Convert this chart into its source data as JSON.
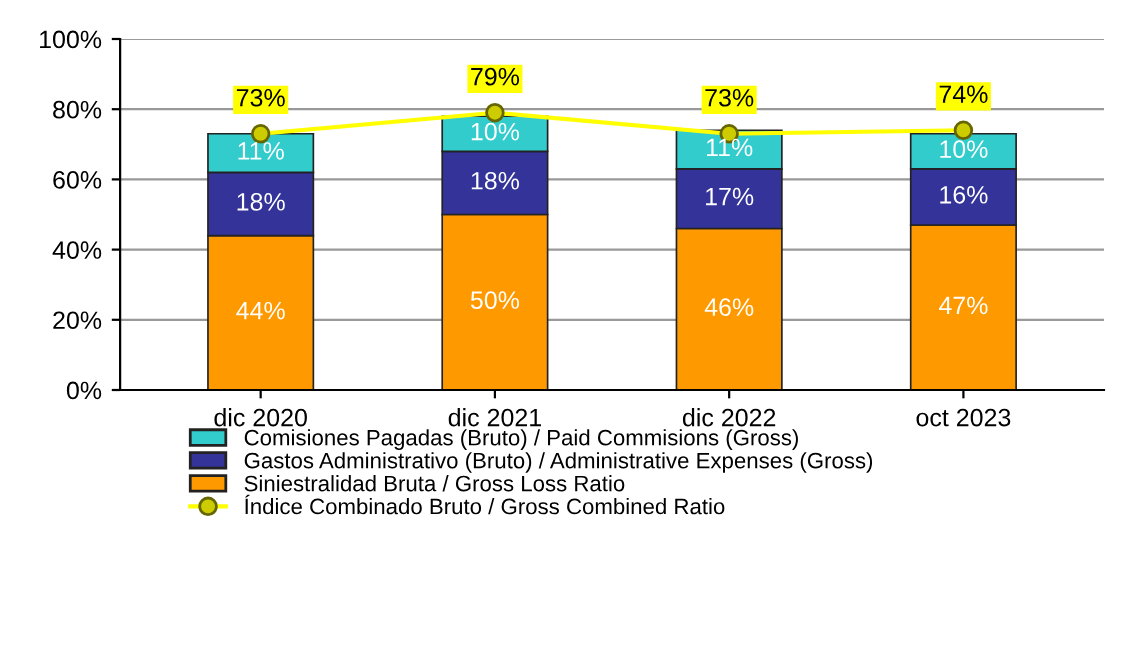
{
  "chart_data": {
    "type": "bar",
    "stacked": true,
    "categories": [
      "dic 2020",
      "dic 2021",
      "dic 2022",
      "oct 2023"
    ],
    "series": [
      {
        "name": "Siniestralidad Bruta / Gross Loss Ratio",
        "color": "#ff9900",
        "values": [
          44,
          50,
          46,
          47
        ],
        "value_labels": [
          "44%",
          "50%",
          "46%",
          "47%"
        ]
      },
      {
        "name": "Gastos Administrativo (Bruto) / Administrative Expenses (Gross)",
        "color": "#333399",
        "values": [
          18,
          18,
          17,
          16
        ],
        "value_labels": [
          "18%",
          "18%",
          "17%",
          "16%"
        ]
      },
      {
        "name": "Comisiones Pagadas (Bruto) / Paid Commisions (Gross)",
        "color": "#33cccc",
        "values": [
          11,
          10,
          11,
          10
        ],
        "value_labels": [
          "11%",
          "10%",
          "11%",
          "10%"
        ]
      },
      {
        "name": "Índice Combinado Bruto / Gross Combined Ratio",
        "type": "line",
        "color": "#ffff00",
        "marker": "circle",
        "values": [
          73,
          79,
          73,
          74
        ],
        "value_labels": [
          "73%",
          "79%",
          "73%",
          "74%"
        ]
      }
    ],
    "ylim": [
      0,
      100
    ],
    "yticks": [
      {
        "value": 0,
        "label": "0%"
      },
      {
        "value": 20,
        "label": "20%"
      },
      {
        "value": 40,
        "label": "40%"
      },
      {
        "value": 60,
        "label": "60%"
      },
      {
        "value": 80,
        "label": "80%"
      },
      {
        "value": 100,
        "label": "100%"
      }
    ],
    "grid": "y",
    "legend": "bottom"
  }
}
